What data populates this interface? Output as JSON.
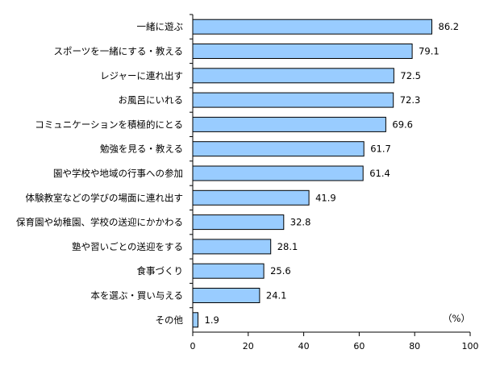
{
  "chart_data": {
    "type": "bar",
    "orientation": "horizontal",
    "title": "",
    "xlabel": "",
    "ylabel": "",
    "unit": "（%）",
    "categories": [
      "一緒に遊ぶ",
      "スポーツを一緒にする・教える",
      "レジャーに連れ出す",
      "お風呂にいれる",
      "コミュニケーションを積極的にとる",
      "勉強を見る・教える",
      "園や学校や地域の行事への参加",
      "体験教室などの学びの場面に連れ出す",
      "保育園や幼稚園、学校の送迎にかかわる",
      "塾や習いごとの送迎をする",
      "食事づくり",
      "本を選ぶ・買い与える",
      "その他"
    ],
    "values": [
      86.2,
      79.1,
      72.5,
      72.3,
      69.6,
      61.7,
      61.4,
      41.9,
      32.8,
      28.1,
      25.6,
      24.1,
      1.9
    ],
    "value_labels": [
      "86.2",
      "79.1",
      "72.5",
      "72.3",
      "69.6",
      "61.7",
      "61.4",
      "41.9",
      "32.8",
      "28.1",
      "25.6",
      "24.1",
      "1.9"
    ],
    "xlim": [
      0,
      100
    ],
    "xticks": [
      0,
      20,
      40,
      60,
      80,
      100
    ],
    "xtick_labels": [
      "0",
      "20",
      "40",
      "60",
      "80",
      "100"
    ],
    "grid": false,
    "legend": "none",
    "colors": {
      "bar_fill": "#99ccff",
      "bar_stroke": "#000000",
      "axis": "#000000"
    }
  }
}
